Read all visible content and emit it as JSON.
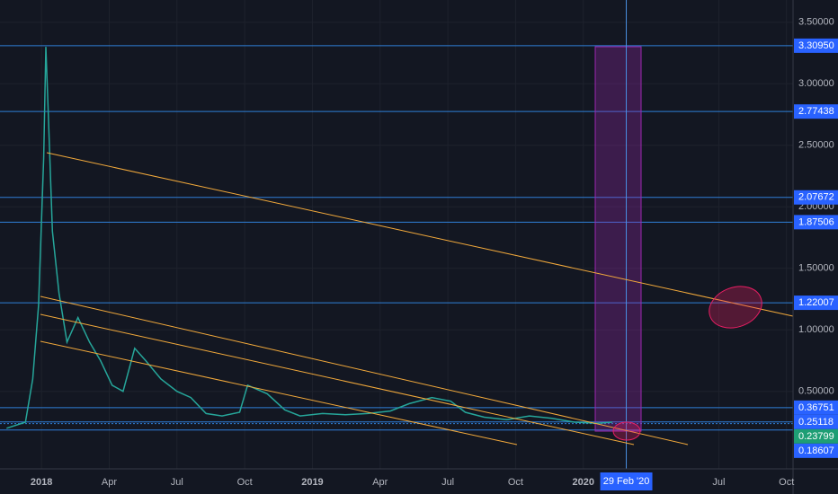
{
  "chart_data": {
    "type": "line",
    "color": "#26a69a",
    "x": [
      "2017-11-15",
      "2017-12-10",
      "2017-12-20",
      "2017-12-28",
      "2018-01-04",
      "2018-01-07",
      "2018-01-10",
      "2018-01-16",
      "2018-01-25",
      "2018-02-05",
      "2018-02-20",
      "2018-03-05",
      "2018-03-20",
      "2018-04-05",
      "2018-04-20",
      "2018-05-05",
      "2018-05-20",
      "2018-06-10",
      "2018-07-01",
      "2018-07-20",
      "2018-08-10",
      "2018-09-01",
      "2018-09-25",
      "2018-10-05",
      "2018-11-01",
      "2018-11-25",
      "2018-12-15",
      "2019-01-15",
      "2019-02-15",
      "2019-03-15",
      "2019-04-15",
      "2019-05-10",
      "2019-06-10",
      "2019-07-05",
      "2019-07-25",
      "2019-08-20",
      "2019-09-20",
      "2019-10-20",
      "2019-11-20",
      "2019-12-20",
      "2020-01-20",
      "2020-02-10"
    ],
    "values": [
      0.2,
      0.25,
      0.6,
      1.2,
      2.4,
      3.3,
      2.8,
      1.8,
      1.3,
      0.9,
      1.1,
      0.9,
      0.75,
      0.55,
      0.5,
      0.85,
      0.75,
      0.6,
      0.5,
      0.45,
      0.32,
      0.3,
      0.33,
      0.55,
      0.48,
      0.35,
      0.3,
      0.32,
      0.31,
      0.32,
      0.34,
      0.4,
      0.45,
      0.42,
      0.33,
      0.29,
      0.27,
      0.3,
      0.28,
      0.25,
      0.24,
      0.25
    ],
    "xlim": [
      "2017-11-06",
      "2020-10-10"
    ],
    "xticks": [
      {
        "value": "2018-01",
        "label": "2018"
      },
      {
        "value": "2018-04",
        "label": "Apr"
      },
      {
        "value": "2018-07",
        "label": "Jul"
      },
      {
        "value": "2018-10",
        "label": "Oct"
      },
      {
        "value": "2019-01",
        "label": "2019"
      },
      {
        "value": "2019-04",
        "label": "Apr"
      },
      {
        "value": "2019-07",
        "label": "Jul"
      },
      {
        "value": "2019-10",
        "label": "Oct"
      },
      {
        "value": "2020-01",
        "label": "2020"
      },
      {
        "value": "2020-07",
        "label": "Jul"
      },
      {
        "value": "2020-10",
        "label": "Oct"
      }
    ],
    "ylim": [
      -0.13,
      3.681
    ],
    "yticks": [
      {
        "value": 0.5,
        "label": "0.50000"
      },
      {
        "value": 1,
        "label": "1.00000"
      },
      {
        "value": 1.5,
        "label": "1.50000"
      },
      {
        "value": 2,
        "label": "2.00000"
      },
      {
        "value": 2.5,
        "label": "2.50000"
      },
      {
        "value": 3,
        "label": "3.00000"
      },
      {
        "value": 3.5,
        "label": "3.50000"
      }
    ],
    "grid": true,
    "levels": [
      {
        "value": 3.3095,
        "label": "3.30950",
        "color": "#2962ff"
      },
      {
        "value": 2.77438,
        "label": "2.77438",
        "color": "#2962ff"
      },
      {
        "value": 2.07672,
        "label": "2.07672",
        "color": "#2962ff"
      },
      {
        "value": 1.87506,
        "label": "1.87506",
        "color": "#2962ff"
      },
      {
        "value": 1.22007,
        "label": "1.22007",
        "color": "#2962ff"
      },
      {
        "value": 0.36751,
        "label": "0.36751",
        "color": "#2962ff"
      },
      {
        "value": 0.25118,
        "label": "0.25118",
        "color": "#2962ff"
      },
      {
        "value": 0.23799,
        "label": "0.23799",
        "color": "#1e9e74"
      },
      {
        "value": 0.18607,
        "label": "0.18607",
        "color": "#2962ff"
      }
    ],
    "crosshair": {
      "x": "2020-02-29",
      "label": "29 Feb '20"
    }
  }
}
